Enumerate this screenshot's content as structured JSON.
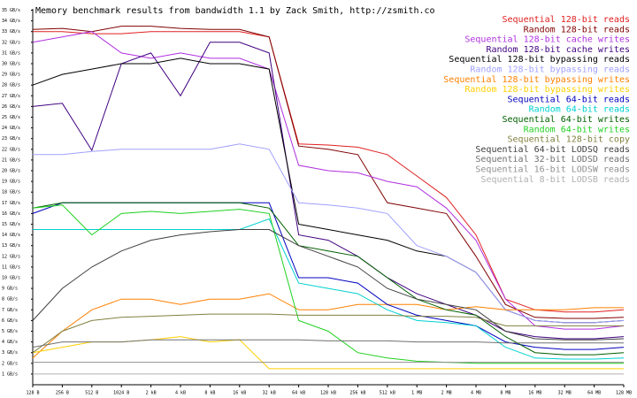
{
  "chart_data": {
    "type": "line",
    "title": "Memory benchmark results from bandwidth 1.1 by Zack Smith, http://zsmith.co",
    "x_scale": "log2",
    "x": [
      128,
      256,
      512,
      1024,
      2048,
      4096,
      8192,
      16384,
      32768,
      65536,
      131072,
      262144,
      524288,
      1048576,
      2097152,
      4194304,
      8388608,
      16777216,
      33554432,
      67108864,
      134217728
    ],
    "xlim": [
      128,
      134217728
    ],
    "xticks": [
      {
        "value": 128,
        "label": "128 B"
      },
      {
        "value": 256,
        "label": "256 B"
      },
      {
        "value": 512,
        "label": "512 B"
      },
      {
        "value": 1024,
        "label": "1024 B"
      },
      {
        "value": 2048,
        "label": "2 kB"
      },
      {
        "value": 4096,
        "label": "4 kB"
      },
      {
        "value": 8192,
        "label": "8 kB"
      },
      {
        "value": 16384,
        "label": "16 kB"
      },
      {
        "value": 32768,
        "label": "32 kB"
      },
      {
        "value": 65536,
        "label": "64 kB"
      },
      {
        "value": 131072,
        "label": "128 kB"
      },
      {
        "value": 262144,
        "label": "256 kB"
      },
      {
        "value": 524288,
        "label": "512 kB"
      },
      {
        "value": 1048576,
        "label": "1 MB"
      },
      {
        "value": 2097152,
        "label": "2 MB"
      },
      {
        "value": 4194304,
        "label": "4 MB"
      },
      {
        "value": 8388608,
        "label": "8 MB"
      },
      {
        "value": 16777216,
        "label": "16 MB"
      },
      {
        "value": 33554432,
        "label": "32 MB"
      },
      {
        "value": 67108864,
        "label": "64 MB"
      },
      {
        "value": 134217728,
        "label": "128 MB"
      }
    ],
    "ylim": [
      0,
      35
    ],
    "yticks": [
      {
        "value": 1,
        "label": "1 GB/s"
      },
      {
        "value": 2,
        "label": "2 GB/s"
      },
      {
        "value": 3,
        "label": "3 GB/s"
      },
      {
        "value": 4,
        "label": "4 GB/s"
      },
      {
        "value": 5,
        "label": "5 GB/s"
      },
      {
        "value": 6,
        "label": "6 GB/s"
      },
      {
        "value": 7,
        "label": "7 GB/s"
      },
      {
        "value": 8,
        "label": "8 GB/s"
      },
      {
        "value": 9,
        "label": "9 GB/s"
      },
      {
        "value": 10,
        "label": "10 GB/s"
      },
      {
        "value": 11,
        "label": "11 GB/s"
      },
      {
        "value": 12,
        "label": "12 GB/s"
      },
      {
        "value": 13,
        "label": "13 GB/s"
      },
      {
        "value": 14,
        "label": "14 GB/s"
      },
      {
        "value": 15,
        "label": "15 GB/s"
      },
      {
        "value": 16,
        "label": "16 GB/s"
      },
      {
        "value": 17,
        "label": "17 GB/s"
      },
      {
        "value": 18,
        "label": "18 GB/s"
      },
      {
        "value": 19,
        "label": "19 GB/s"
      },
      {
        "value": 20,
        "label": "20 GB/s"
      },
      {
        "value": 21,
        "label": "21 GB/s"
      },
      {
        "value": 22,
        "label": "22 GB/s"
      },
      {
        "value": 23,
        "label": "23 GB/s"
      },
      {
        "value": 24,
        "label": "24 GB/s"
      },
      {
        "value": 25,
        "label": "25 GB/s"
      },
      {
        "value": 26,
        "label": "26 GB/s"
      },
      {
        "value": 27,
        "label": "27 GB/s"
      },
      {
        "value": 28,
        "label": "28 GB/s"
      },
      {
        "value": 29,
        "label": "29 GB/s"
      },
      {
        "value": 30,
        "label": "30 GB/s"
      },
      {
        "value": 31,
        "label": "31 GB/s"
      },
      {
        "value": 32,
        "label": "32 GB/s"
      },
      {
        "value": 33,
        "label": "33 GB/s"
      },
      {
        "value": 34,
        "label": "34 GB/s"
      },
      {
        "value": 35,
        "label": "35 GB/s"
      }
    ],
    "legend": "top-right",
    "series": [
      {
        "name": "Sequential 128-bit reads",
        "color": "#e02020",
        "values": [
          33,
          33,
          32.8,
          32.8,
          33,
          33,
          33,
          33,
          32.5,
          22.5,
          22.4,
          22.2,
          21.5,
          19.5,
          17.5,
          14,
          8,
          7,
          6.8,
          6.8,
          7
        ]
      },
      {
        "name": "Random 128-bit reads",
        "color": "#800000",
        "values": [
          33.2,
          33.3,
          33,
          33.5,
          33.5,
          33.3,
          33.2,
          33.2,
          32.5,
          22.3,
          22,
          21.5,
          17,
          16.5,
          16,
          12,
          7.5,
          6.3,
          6.2,
          6.2,
          6.3
        ]
      },
      {
        "name": "Sequential 128-bit cache writes",
        "color": "#b030e0",
        "values": [
          32,
          32.5,
          33,
          31,
          30.5,
          31,
          30.5,
          30.5,
          29.5,
          20.5,
          20,
          19.8,
          19,
          18.5,
          16.5,
          13.5,
          8,
          5.5,
          5.2,
          5.2,
          5.5
        ]
      },
      {
        "name": "Random 128-bit cache writes",
        "color": "#400080",
        "values": [
          26,
          26.3,
          21.9,
          30,
          31,
          27,
          32,
          32,
          31,
          14,
          13.5,
          12,
          10,
          8.5,
          7.5,
          6.5,
          5,
          4.5,
          4.3,
          4.3,
          4.5
        ]
      },
      {
        "name": "Sequential 128-bit bypassing reads",
        "color": "#000000",
        "values": [
          28,
          29,
          29.5,
          30,
          30,
          30.5,
          30,
          30,
          29.5,
          15,
          14.5,
          14,
          13.5,
          12.5,
          12,
          10.5,
          7,
          6,
          5.8,
          5.8,
          6
        ]
      },
      {
        "name": "Random 128-bit bypassing reads",
        "color": "#a0a0ff",
        "values": [
          21.5,
          21.5,
          21.8,
          22,
          22,
          22,
          22,
          22.5,
          22,
          17,
          16.8,
          16.5,
          16,
          13,
          12,
          10.5,
          7,
          6,
          5.8,
          5.8,
          6
        ]
      },
      {
        "name": "Sequential 128-bit bypassing writes",
        "color": "#ff8000",
        "values": [
          2.5,
          5,
          7,
          8,
          8,
          7.5,
          8,
          8,
          8.5,
          7,
          7,
          7.5,
          7.5,
          7.5,
          7,
          7.3,
          7,
          7,
          7,
          7.2,
          7.2
        ]
      },
      {
        "name": "Random 128-bit bypassing writes",
        "color": "#ffd000",
        "values": [
          3,
          3.5,
          4,
          4,
          4.2,
          4.5,
          4,
          4.2,
          1.5,
          1.5,
          1.5,
          1.5,
          1.5,
          1.5,
          1.5,
          1.5,
          1.5,
          1.5,
          1.5,
          1.5,
          1.5
        ]
      },
      {
        "name": "Sequential 64-bit reads",
        "color": "#0000c0",
        "values": [
          16,
          17,
          17,
          17,
          17,
          17,
          17,
          17,
          17,
          10,
          10,
          9.5,
          7.5,
          6.5,
          6,
          5.5,
          4,
          3.5,
          3.3,
          3.3,
          3.5
        ]
      },
      {
        "name": "Random 64-bit reads",
        "color": "#00d0d0",
        "values": [
          14.5,
          14.5,
          14.5,
          14.5,
          14.5,
          14.5,
          14.5,
          14.5,
          15.5,
          9.5,
          9,
          8.5,
          7,
          6,
          5.8,
          5.5,
          3.5,
          2.5,
          2.4,
          2.4,
          2.5
        ]
      },
      {
        "name": "Sequential 64-bit writes",
        "color": "#006000",
        "values": [
          16.5,
          17,
          17,
          17,
          17,
          17,
          17,
          17,
          16.5,
          13,
          12.5,
          12,
          10,
          8,
          7,
          6.5,
          4.5,
          3,
          2.8,
          2.8,
          3
        ]
      },
      {
        "name": "Random 64-bit writes",
        "color": "#20d020",
        "values": [
          16.5,
          16.8,
          14,
          16,
          16.2,
          16,
          16.2,
          16.4,
          16,
          6,
          5,
          3,
          2.5,
          2.2,
          2.1,
          2,
          2,
          2,
          2,
          2,
          2
        ]
      },
      {
        "name": "Sequential 128-bit copy",
        "color": "#808040",
        "values": [
          3,
          5,
          6,
          6.3,
          6.4,
          6.5,
          6.6,
          6.6,
          6.6,
          6.5,
          6.5,
          6.5,
          6.5,
          6.4,
          6.4,
          6.3,
          5.5,
          5.5,
          5.5,
          5.5,
          5.5
        ]
      },
      {
        "name": "Sequential 64-bit LODSQ reads",
        "color": "#404040",
        "values": [
          6,
          9,
          11,
          12.5,
          13.5,
          14,
          14.3,
          14.5,
          14.5,
          13,
          12,
          11,
          9,
          8,
          7.5,
          7,
          5,
          4.3,
          4.2,
          4.2,
          4.3
        ]
      },
      {
        "name": "Sequential 32-bit LODSD reads",
        "color": "#707070",
        "values": [
          3.5,
          4,
          4,
          4,
          4.2,
          4.2,
          4.2,
          4.2,
          4.2,
          4.2,
          4.1,
          4.1,
          4.1,
          4,
          4,
          4,
          3.9,
          3.9,
          3.9,
          3.9,
          3.9
        ]
      },
      {
        "name": "Sequential 16-bit LODSW reads",
        "color": "#909090",
        "values": [
          2.1,
          2.1,
          2.1,
          2.1,
          2.1,
          2.1,
          2.1,
          2.1,
          2.1,
          2.1,
          2.1,
          2.1,
          2.1,
          2.1,
          2.1,
          2.1,
          2.1,
          2.1,
          2.1,
          2.1,
          2.1
        ]
      },
      {
        "name": "Sequential 8-bit LODSB reads",
        "color": "#b0b0b0",
        "values": [
          1,
          1,
          1,
          1,
          1,
          1,
          1,
          1,
          1,
          1,
          1,
          1,
          1,
          1,
          1,
          1,
          1,
          1,
          1,
          1,
          1
        ]
      }
    ]
  }
}
